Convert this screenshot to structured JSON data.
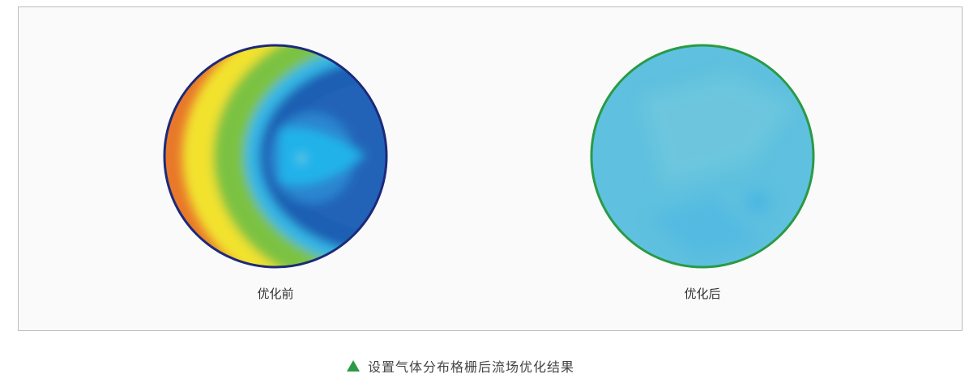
{
  "panels": [
    {
      "label": "优化前",
      "border_color": "#1c2a7a"
    },
    {
      "label": "优化后",
      "border_color": "#2a9a45",
      "fill_color": "#5fc1df"
    }
  ],
  "caption": {
    "icon": "triangle-up-icon",
    "icon_color": "#2a9a45",
    "text": "设置气体分布格栅后流场优化结果"
  }
}
